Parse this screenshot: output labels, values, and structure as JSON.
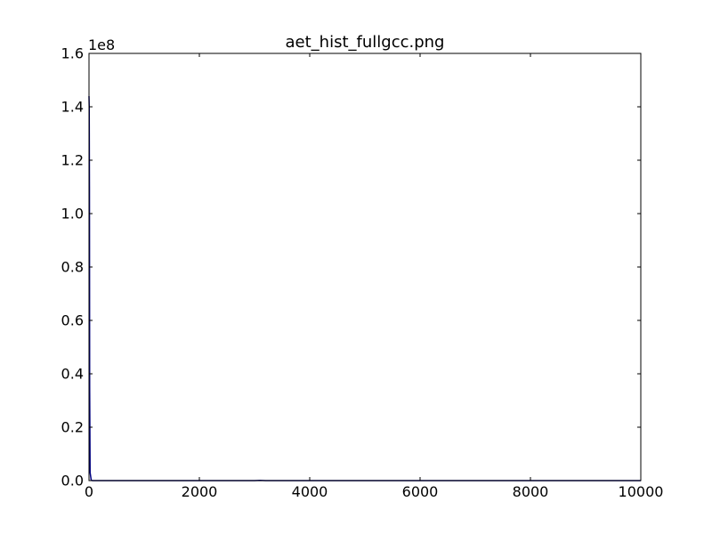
{
  "chart_data": {
    "type": "line",
    "title": "aet_hist_fullgcc.png",
    "xlabel": "",
    "ylabel": "",
    "y_offset_label": "1e8",
    "xlim": [
      0,
      10000
    ],
    "ylim": [
      0,
      1.6
    ],
    "y_scale_multiplier": 100000000,
    "xticks": [
      0,
      2000,
      4000,
      6000,
      8000,
      10000
    ],
    "xtick_labels": [
      "0",
      "2000",
      "4000",
      "6000",
      "8000",
      "10000"
    ],
    "yticks": [
      0.0,
      0.2,
      0.4,
      0.6,
      0.8,
      1.0,
      1.2,
      1.4,
      1.6
    ],
    "ytick_labels": [
      "0.0",
      "0.2",
      "0.4",
      "0.6",
      "0.8",
      "1.0",
      "1.2",
      "1.4",
      "1.6"
    ],
    "grid": false,
    "legend": "none",
    "series": [
      {
        "color": "#000080",
        "x": [
          0,
          4,
          8,
          12,
          20,
          40,
          60,
          100,
          500,
          1000,
          2000,
          3000,
          3100,
          3200,
          4000,
          6000,
          8000,
          10000
        ],
        "y": [
          1.44,
          1.4,
          1.1,
          0.35,
          0.03,
          0.002,
          0,
          0,
          0,
          0,
          0,
          0,
          0.001,
          0,
          0,
          0,
          0,
          0
        ]
      }
    ]
  }
}
